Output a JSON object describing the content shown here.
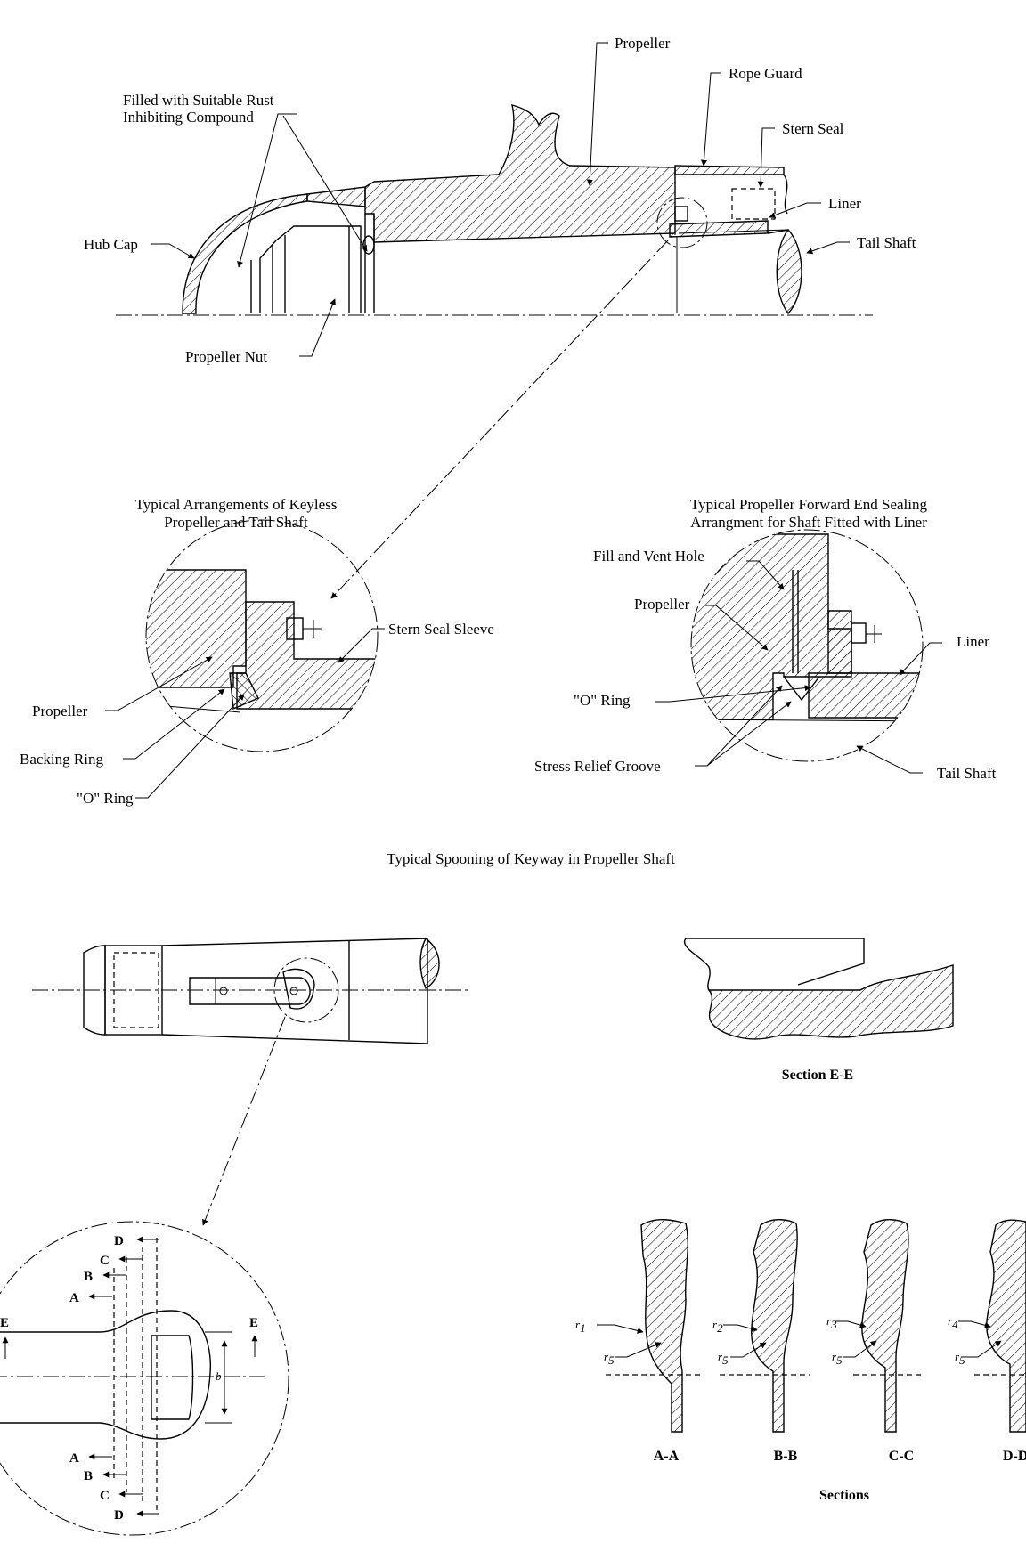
{
  "top_view": {
    "labels": {
      "propeller": "Propeller",
      "rope_guard": "Rope Guard",
      "filled_line1": "Filled with Suitable Rust",
      "filled_line2": "Inhibiting Compound",
      "stern_seal": "Stern Seal",
      "liner": "Liner",
      "hub_cap": "Hub Cap",
      "tail_shaft": "Tail Shaft",
      "propeller_nut": "Propeller Nut"
    }
  },
  "keyless_detail": {
    "title_line1": "Typical Arrangements of Keyless",
    "title_line2": "Propeller and Tail Shaft",
    "labels": {
      "stern_seal_sleeve": "Stern Seal Sleeve",
      "propeller": "Propeller",
      "backing_ring": "Backing Ring",
      "o_ring": "\"O\" Ring"
    }
  },
  "sealing_detail": {
    "title_line1": "Typical Propeller Forward End Sealing",
    "title_line2": "Arrangment for Shaft Fitted with Liner",
    "labels": {
      "fill_vent": "Fill and Vent Hole",
      "propeller": "Propeller",
      "liner": "Liner",
      "o_ring": "\"O\" Ring",
      "stress_relief": "Stress Relief Groove",
      "tail_shaft": "Tail Shaft"
    }
  },
  "spooning": {
    "title": "Typical Spooning of Keyway in Propeller Shaft",
    "section_ee": "Section E-E",
    "section_letters": {
      "a": "A",
      "b": "B",
      "c": "C",
      "d": "D",
      "e": "E",
      "width": "b"
    },
    "sections": [
      {
        "label": "A-A",
        "r_top": "r",
        "r_top_sub": "1",
        "r_bottom": "r",
        "r_bottom_sub": "5"
      },
      {
        "label": "B-B",
        "r_top": "r",
        "r_top_sub": "2",
        "r_bottom": "r",
        "r_bottom_sub": "5"
      },
      {
        "label": "C-C",
        "r_top": "r",
        "r_top_sub": "3",
        "r_bottom": "r",
        "r_bottom_sub": "5"
      },
      {
        "label": "D-D",
        "r_top": "r",
        "r_top_sub": "4",
        "r_bottom": "r",
        "r_bottom_sub": "5"
      }
    ],
    "sections_caption": "Sections"
  }
}
